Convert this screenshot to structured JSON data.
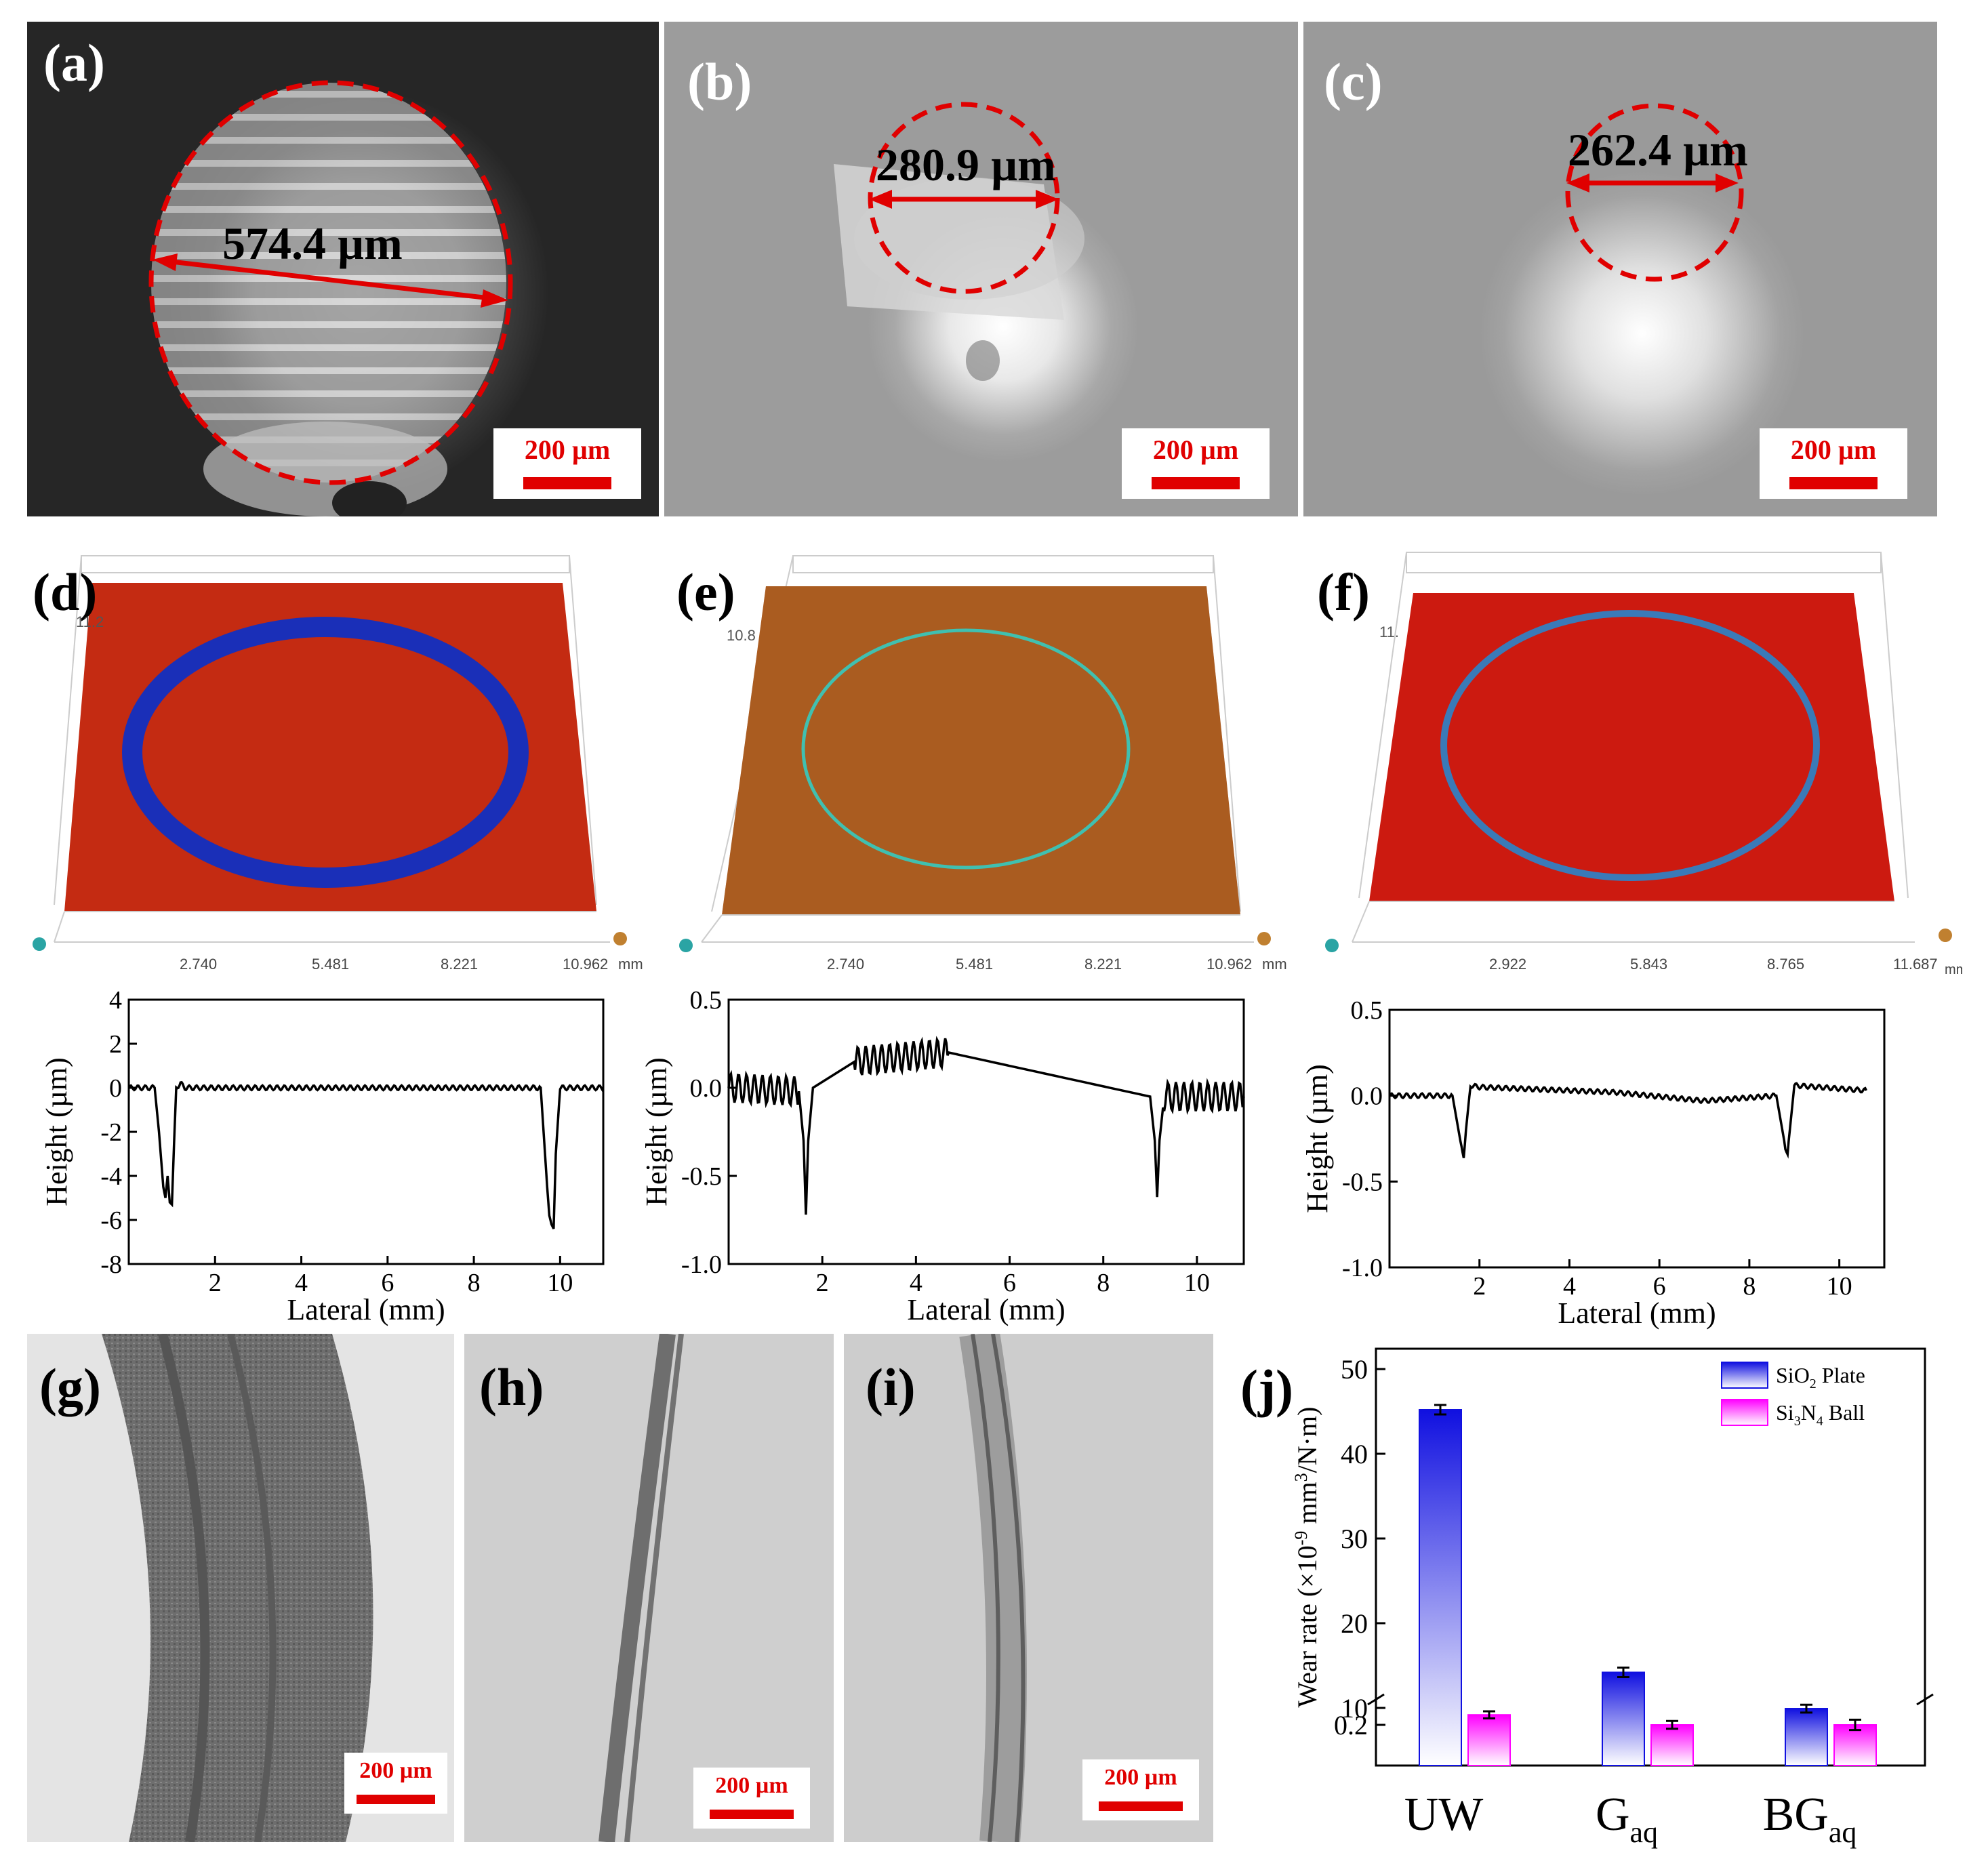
{
  "row1": [
    {
      "label": "(a)",
      "measurement": "574.4 µm",
      "scalebar": "200 µm"
    },
    {
      "label": "(b)",
      "measurement": "280.9 µm",
      "scalebar": "200 µm"
    },
    {
      "label": "(c)",
      "measurement": "262.4 µm",
      "scalebar": "200 µm"
    }
  ],
  "row2": [
    {
      "label": "(d)",
      "zlabel": "11.2",
      "xticks": [
        "2.740",
        "5.481",
        "8.221",
        "10.962"
      ],
      "unit": "mm"
    },
    {
      "label": "(e)",
      "zlabel": "10.8",
      "xticks": [
        "2.740",
        "5.481",
        "8.221",
        "10.962"
      ],
      "unit": "mm"
    },
    {
      "label": "(f)",
      "zlabel": "11.",
      "xticks": [
        "2.922",
        "5.843",
        "8.765",
        "11.687"
      ],
      "unit": "mm"
    }
  ],
  "row4": [
    {
      "label": "(g)",
      "scalebar": "200 µm"
    },
    {
      "label": "(h)",
      "scalebar": "200 µm"
    },
    {
      "label": "(i)",
      "scalebar": "200 µm"
    },
    {
      "label": "(j)"
    }
  ],
  "colors": {
    "red_annotation": "#e00000",
    "plate_blue": "#1010e0",
    "ball_magenta": "#ff00ff"
  },
  "chart_data": [
    {
      "type": "line",
      "panel": "d",
      "xlabel": "Lateral (mm)",
      "ylabel": "Height (µm)",
      "xlim": [
        0,
        11
      ],
      "ylim": [
        -8,
        4
      ],
      "xticks": [
        "2",
        "4",
        "6",
        "8",
        "10"
      ],
      "yticks": [
        "4",
        "2",
        "0",
        "-2",
        "-4",
        "-6",
        "-8"
      ],
      "x": [
        0.0,
        0.6,
        0.7,
        0.8,
        0.85,
        0.9,
        0.95,
        1.0,
        1.05,
        1.1,
        1.2,
        1.3,
        3,
        5,
        7,
        9.3,
        9.55,
        9.6,
        9.7,
        9.75,
        9.8,
        9.85,
        9.9,
        10.0,
        10.5,
        11.0
      ],
      "y": [
        0.0,
        0.0,
        -2.0,
        -4.5,
        -5.0,
        -4.0,
        -5.2,
        -5.3,
        -2.5,
        0.0,
        0.2,
        0.0,
        0.0,
        0.0,
        0.0,
        0.0,
        0.0,
        -1.5,
        -4.5,
        -5.8,
        -6.2,
        -6.4,
        -3.0,
        0.0,
        0.0,
        0.0
      ]
    },
    {
      "type": "line",
      "panel": "e",
      "xlabel": "Lateral (mm)",
      "ylabel": "Height (µm)",
      "xlim": [
        0,
        11
      ],
      "ylim": [
        -1.0,
        0.5
      ],
      "xticks": [
        "2",
        "4",
        "6",
        "8",
        "10"
      ],
      "yticks": [
        "0.5",
        "0.0",
        "-0.5",
        "-1.0"
      ],
      "x": [
        0.0,
        1.5,
        1.6,
        1.65,
        1.7,
        1.8,
        2.7,
        4.7,
        9.0,
        9.1,
        9.15,
        9.2,
        9.3,
        11.0
      ],
      "y": [
        0.0,
        -0.02,
        -0.3,
        -0.72,
        -0.3,
        0.0,
        0.15,
        0.2,
        -0.05,
        -0.3,
        -0.62,
        -0.3,
        -0.05,
        -0.05
      ]
    },
    {
      "type": "line",
      "panel": "f",
      "xlabel": "Lateral (mm)",
      "ylabel": "Height (µm)",
      "xlim": [
        0,
        11
      ],
      "ylim": [
        -1.0,
        0.5
      ],
      "xticks": [
        "2",
        "4",
        "6",
        "8",
        "10"
      ],
      "yticks": [
        "0.5",
        "0.0",
        "-0.5",
        "-1.0"
      ],
      "x": [
        0.0,
        1.4,
        1.5,
        1.6,
        1.65,
        1.7,
        1.8,
        2.0,
        5.0,
        7.0,
        8.6,
        8.7,
        8.8,
        8.85,
        8.9,
        9.0,
        10.6
      ],
      "y": [
        0.0,
        0.0,
        -0.15,
        -0.3,
        -0.35,
        -0.2,
        0.06,
        0.05,
        0.02,
        -0.03,
        0.0,
        -0.15,
        -0.3,
        -0.35,
        -0.2,
        0.06,
        0.03
      ]
    },
    {
      "type": "bar",
      "panel": "j",
      "ylabel_main": "Wear rate (×10",
      "ylabel_sup": "-9",
      "ylabel_mid": " mm",
      "ylabel_sup2": "3",
      "ylabel_end": "/N·m)",
      "categories": [
        {
          "base": "UW",
          "sub": ""
        },
        {
          "base": "G",
          "sub": "aq"
        },
        {
          "base": "BG",
          "sub": "aq"
        }
      ],
      "yticks": [
        "0.2",
        "10",
        "20",
        "30",
        "40",
        "50"
      ],
      "ylim": [
        0.2,
        50
      ],
      "axis_break": true,
      "series": [
        {
          "name_base": "SiO",
          "name_sub": "2",
          "name_rest": " Plate",
          "values": [
            45.2,
            14.2,
            9.6
          ],
          "errors": [
            0.5,
            0.5,
            0.3
          ],
          "color": "#1010e0"
        },
        {
          "name_base": "Si",
          "name_sub": "3",
          "name_mid": "N",
          "name_sub2": "4",
          "name_rest": " Ball",
          "values": [
            6.0,
            0.2,
            0.2
          ],
          "errors": [
            0.2,
            0.3,
            0.6
          ],
          "color": "#ff00ff"
        }
      ],
      "legend_position": "top-right"
    }
  ]
}
